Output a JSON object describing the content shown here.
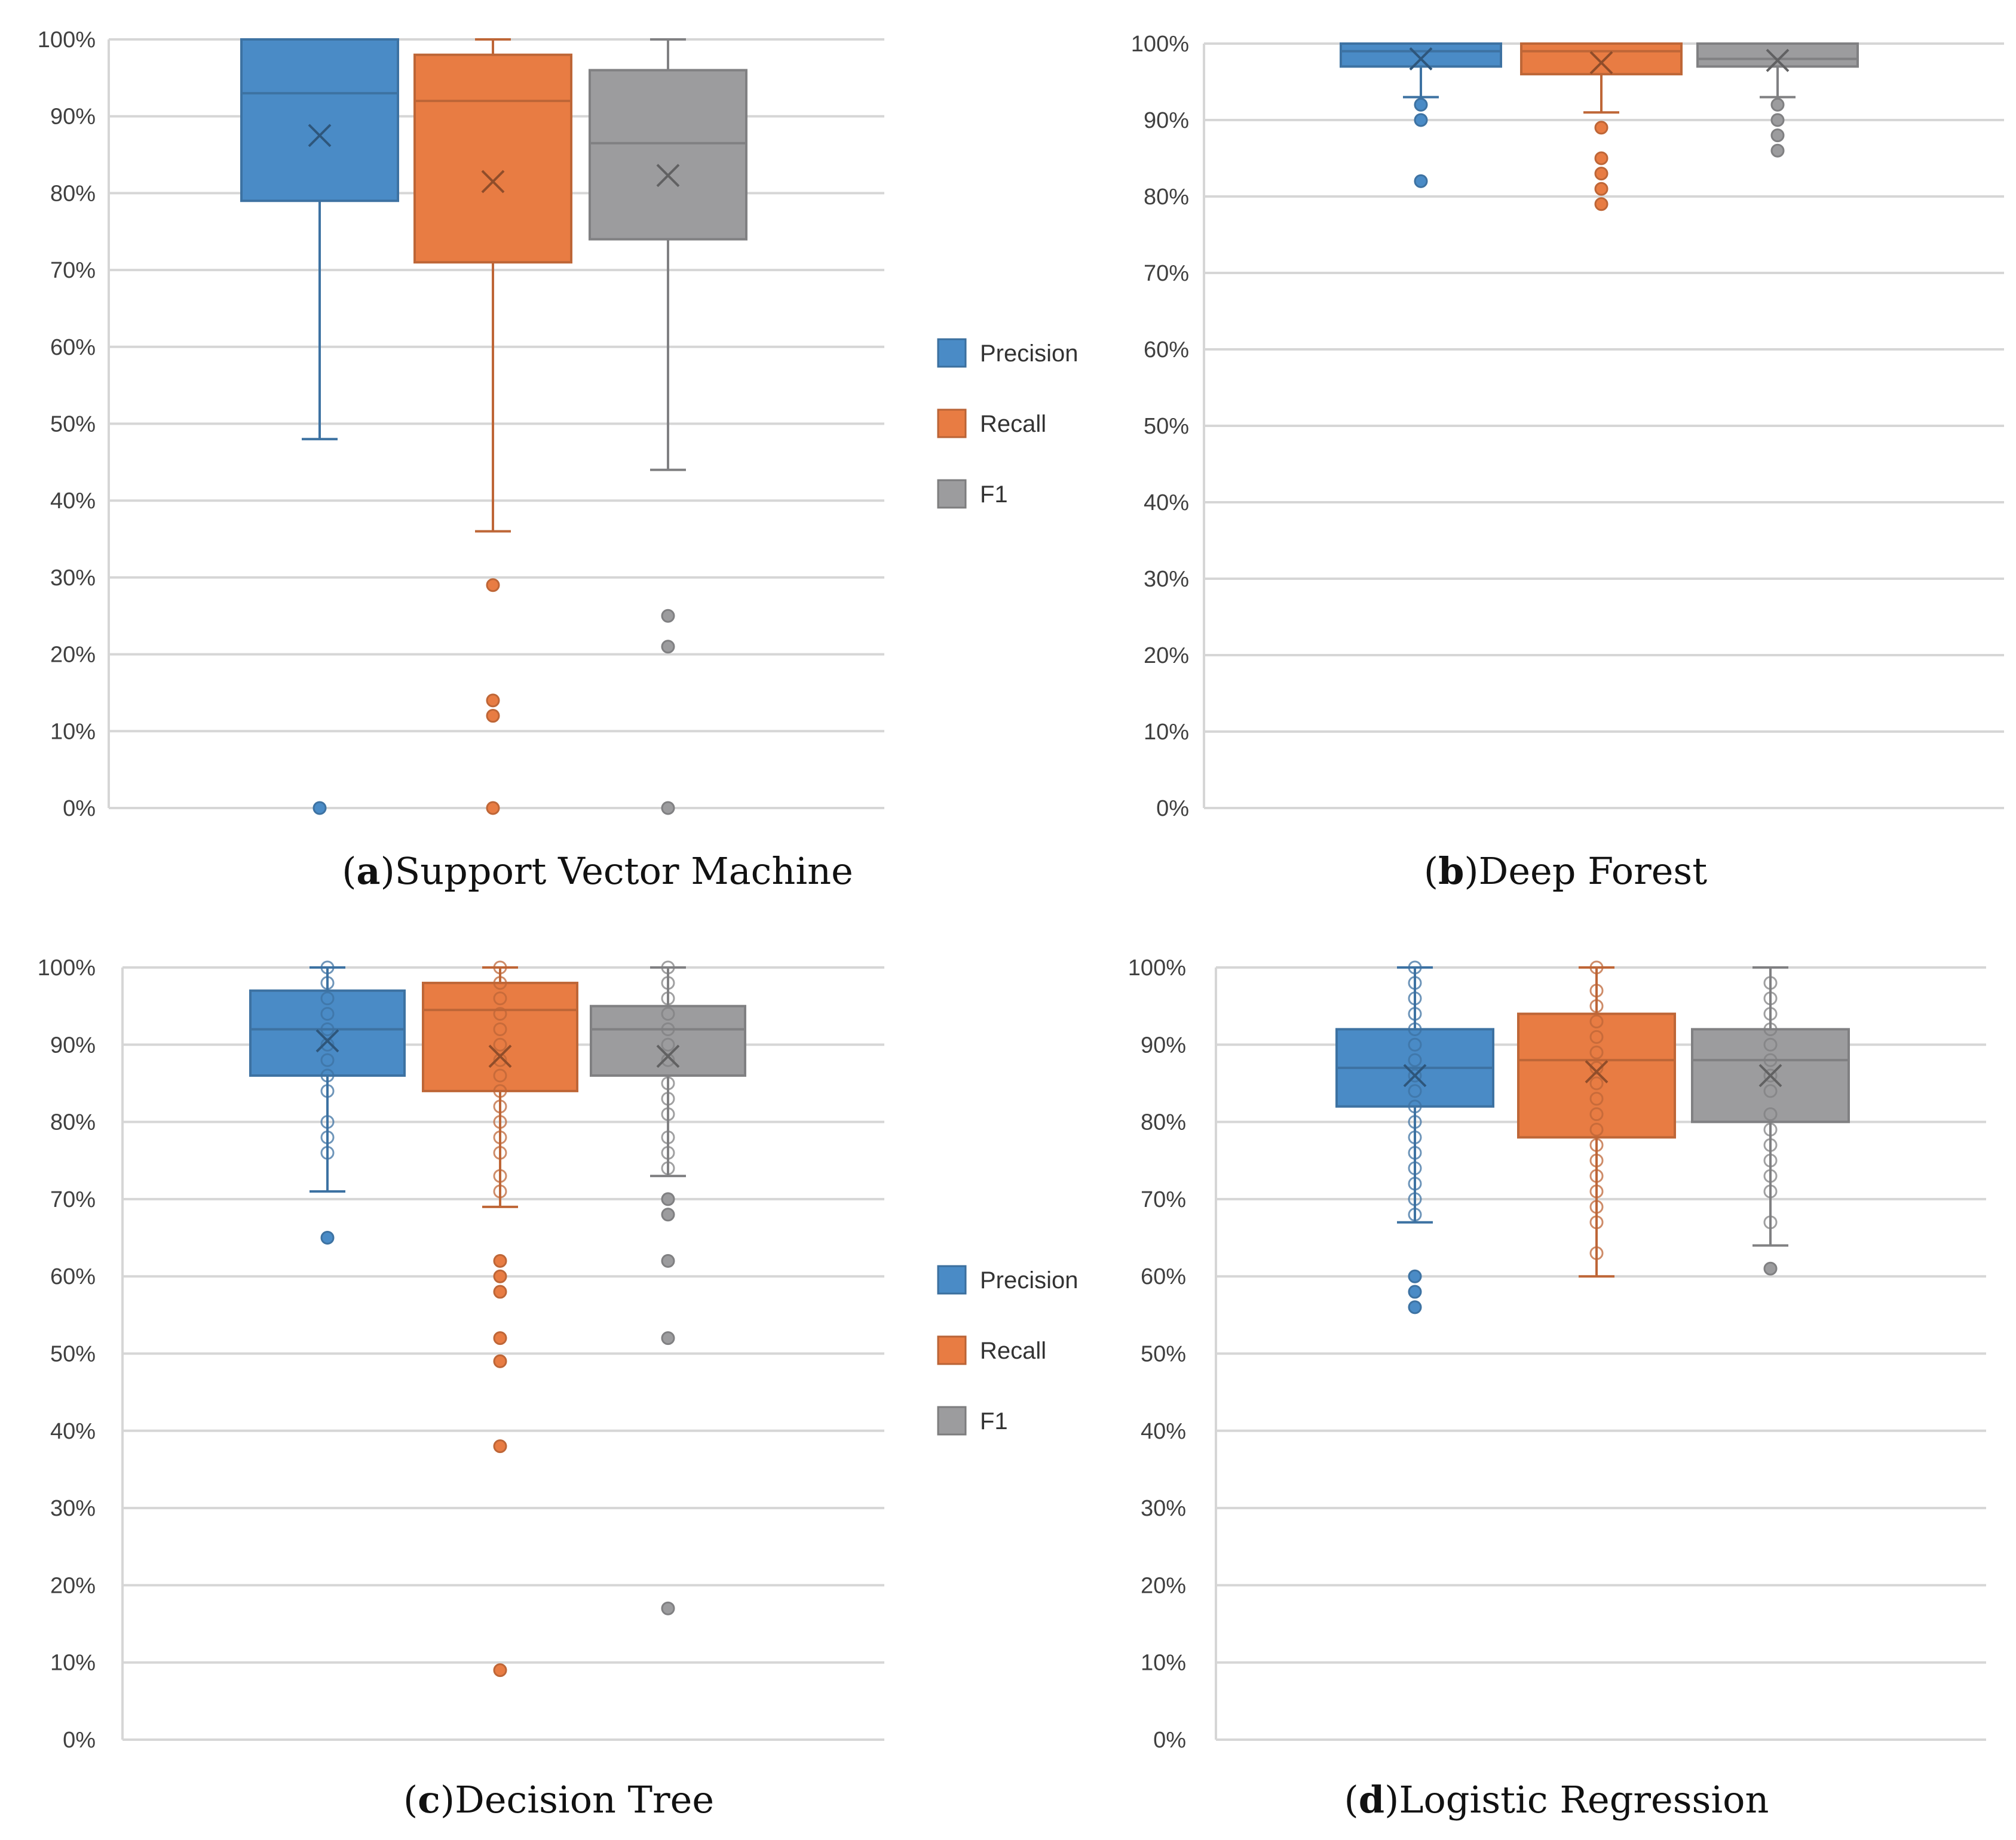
{
  "chart_data": [
    {
      "type": "box",
      "caption_letter": "a",
      "caption_title": "Support Vector Machine",
      "y_ticks": [
        "0%",
        "10%",
        "20%",
        "30%",
        "40%",
        "50%",
        "60%",
        "70%",
        "80%",
        "90%",
        "100%"
      ],
      "ylim": [
        0,
        100
      ],
      "legend": [
        "Precision",
        "Recall",
        "F1"
      ],
      "series": [
        {
          "name": "Precision",
          "color": "#4a8bc6",
          "min": 48,
          "q1": 79,
          "median": 93,
          "q3": 100,
          "max": 100,
          "mean": 87.5,
          "outliers": [
            0
          ]
        },
        {
          "name": "Recall",
          "color": "#e87c43",
          "min": 36,
          "q1": 71,
          "median": 92,
          "q3": 98,
          "max": 100,
          "mean": 81.5,
          "outliers": [
            29,
            14,
            12,
            0
          ]
        },
        {
          "name": "F1",
          "color": "#9c9c9e",
          "min": 44,
          "q1": 74,
          "median": 86.5,
          "q3": 96,
          "max": 100,
          "mean": 82.3,
          "outliers": [
            25,
            21,
            0
          ]
        }
      ]
    },
    {
      "type": "box",
      "caption_letter": "b",
      "caption_title": "Deep Forest",
      "y_ticks": [
        "0%",
        "10%",
        "20%",
        "30%",
        "40%",
        "50%",
        "60%",
        "70%",
        "80%",
        "90%",
        "100%"
      ],
      "ylim": [
        0,
        100
      ],
      "legend": [],
      "series": [
        {
          "name": "Precision",
          "color": "#4a8bc6",
          "min": 93,
          "q1": 97,
          "median": 99,
          "q3": 100,
          "max": 100,
          "mean": 98,
          "outliers": [
            92,
            90,
            82
          ]
        },
        {
          "name": "Recall",
          "color": "#e87c43",
          "min": 91,
          "q1": 96,
          "median": 99,
          "q3": 100,
          "max": 100,
          "mean": 97.5,
          "outliers": [
            89,
            85,
            83,
            81,
            79
          ]
        },
        {
          "name": "F1",
          "color": "#9c9c9e",
          "min": 93,
          "q1": 97,
          "median": 98,
          "q3": 100,
          "max": 100,
          "mean": 97.8,
          "outliers": [
            92,
            90,
            88,
            86
          ]
        }
      ]
    },
    {
      "type": "box",
      "caption_letter": "c",
      "caption_title": "Decision Tree",
      "y_ticks": [
        "0%",
        "10%",
        "20%",
        "30%",
        "40%",
        "50%",
        "60%",
        "70%",
        "80%",
        "90%",
        "100%"
      ],
      "ylim": [
        0,
        100
      ],
      "legend": [
        "Precision",
        "Recall",
        "F1"
      ],
      "series": [
        {
          "name": "Precision",
          "color": "#4a8bc6",
          "min": 71,
          "q1": 86,
          "median": 92,
          "q3": 97,
          "max": 100,
          "mean": 90.5,
          "outliers": [
            65
          ],
          "inner_points": [
            100,
            98,
            96,
            94,
            92,
            90,
            88,
            86,
            84,
            80,
            78,
            76
          ]
        },
        {
          "name": "Recall",
          "color": "#e87c43",
          "min": 69,
          "q1": 84,
          "median": 94.5,
          "q3": 98,
          "max": 100,
          "mean": 88.5,
          "outliers": [
            62,
            60,
            58,
            52,
            49,
            38,
            9
          ],
          "inner_points": [
            100,
            98,
            96,
            94,
            92,
            90,
            88,
            86,
            84,
            82,
            80,
            78,
            76,
            73,
            71
          ]
        },
        {
          "name": "F1",
          "color": "#9c9c9e",
          "min": 73,
          "q1": 86,
          "median": 92,
          "q3": 95,
          "max": 100,
          "mean": 88.5,
          "outliers": [
            70,
            68,
            62,
            52,
            17
          ],
          "inner_points": [
            100,
            98,
            96,
            94,
            92,
            90,
            88,
            85,
            83,
            81,
            78,
            76,
            74
          ]
        }
      ]
    },
    {
      "type": "box",
      "caption_letter": "d",
      "caption_title": "Logistic Regression",
      "y_ticks": [
        "0%",
        "10%",
        "20%",
        "30%",
        "40%",
        "50%",
        "60%",
        "70%",
        "80%",
        "90%",
        "100%"
      ],
      "ylim": [
        0,
        100
      ],
      "legend": [],
      "series": [
        {
          "name": "Precision",
          "color": "#4a8bc6",
          "min": 67,
          "q1": 82,
          "median": 87,
          "q3": 92,
          "max": 100,
          "mean": 86,
          "outliers": [
            60,
            58,
            56
          ],
          "inner_points": [
            100,
            98,
            96,
            94,
            92,
            90,
            88,
            86,
            84,
            82,
            80,
            78,
            76,
            74,
            72,
            70,
            68
          ]
        },
        {
          "name": "Recall",
          "color": "#e87c43",
          "min": 60,
          "q1": 78,
          "median": 88,
          "q3": 94,
          "max": 100,
          "mean": 86.5,
          "outliers": [],
          "inner_points": [
            100,
            97,
            95,
            93,
            91,
            89,
            87,
            85,
            83,
            81,
            79,
            77,
            75,
            73,
            71,
            69,
            67,
            63
          ]
        },
        {
          "name": "F1",
          "color": "#9c9c9e",
          "min": 64,
          "q1": 80,
          "median": 88,
          "q3": 92,
          "max": 100,
          "mean": 86,
          "outliers": [
            61
          ],
          "inner_points": [
            98,
            96,
            94,
            92,
            90,
            88,
            86,
            84,
            81,
            79,
            77,
            75,
            73,
            71,
            67
          ]
        }
      ]
    }
  ]
}
